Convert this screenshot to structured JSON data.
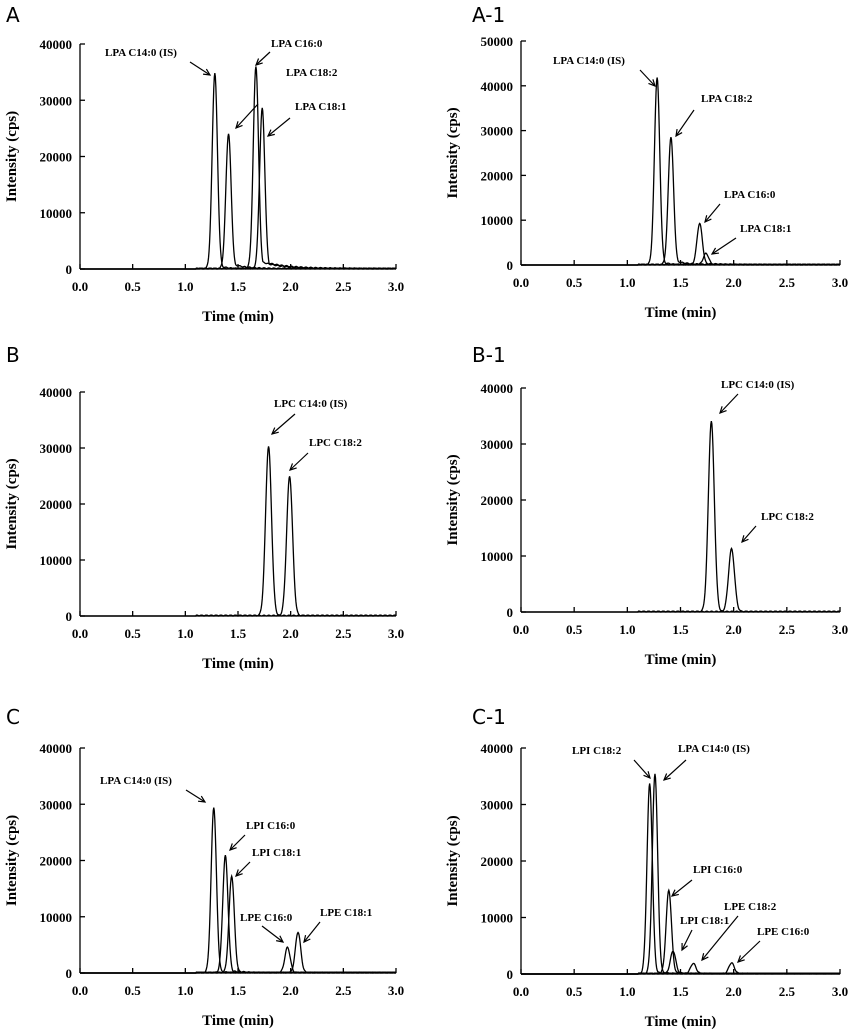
{
  "chart_data": [
    {
      "panel": "A",
      "type": "line",
      "xlabel": "Time (min)",
      "ylabel": "Intensity (cps)",
      "xlim": [
        0,
        3
      ],
      "ylim": [
        0,
        40000
      ],
      "xticks": [
        "0.0",
        "0.5",
        "1.0",
        "1.5",
        "2.0",
        "2.5",
        "3.0"
      ],
      "yticks": [
        "0",
        "10000",
        "20000",
        "30000",
        "40000"
      ],
      "peaks": [
        {
          "label": "LPA C14:0 (IS)",
          "rt": 1.28,
          "height": 34800,
          "sigma": 0.025,
          "tail": 0.05
        },
        {
          "label": "LPA C18:2",
          "rt": 1.41,
          "height": 24000,
          "sigma": 0.025,
          "tail": 0.12
        },
        {
          "label": "LPA C16:0",
          "rt": 1.67,
          "height": 36000,
          "sigma": 0.025,
          "tail": 0.18
        },
        {
          "label": "LPA C18:1",
          "rt": 1.73,
          "height": 28500,
          "sigma": 0.025,
          "tail": 0.22
        }
      ]
    },
    {
      "panel": "A-1",
      "type": "line",
      "xlabel": "Time (min)",
      "ylabel": "Intensity (cps)",
      "xlim": [
        0,
        3
      ],
      "ylim": [
        0,
        50000
      ],
      "xticks": [
        "0.0",
        "0.5",
        "1.0",
        "1.5",
        "2.0",
        "2.5",
        "3.0"
      ],
      "yticks": [
        "0",
        "10000",
        "20000",
        "30000",
        "40000",
        "50000"
      ],
      "peaks": [
        {
          "label": "LPA C14:0 (IS)",
          "rt": 1.28,
          "height": 41800,
          "sigma": 0.025,
          "tail": 0.05
        },
        {
          "label": "LPA C18:2",
          "rt": 1.41,
          "height": 28500,
          "sigma": 0.025,
          "tail": 0.1
        },
        {
          "label": "LPA C16:0",
          "rt": 1.68,
          "height": 9200,
          "sigma": 0.025,
          "tail": 0.12
        },
        {
          "label": "LPA C18:1",
          "rt": 1.74,
          "height": 2500,
          "sigma": 0.025,
          "tail": 0.12
        }
      ]
    },
    {
      "panel": "B",
      "type": "line",
      "xlabel": "Time (min)",
      "ylabel": "Intensity (cps)",
      "xlim": [
        0,
        3
      ],
      "ylim": [
        0,
        40000
      ],
      "xticks": [
        "0.0",
        "0.5",
        "1.0",
        "1.5",
        "2.0",
        "2.5",
        "3.0"
      ],
      "yticks": [
        "0",
        "10000",
        "20000",
        "30000",
        "40000"
      ],
      "peaks": [
        {
          "label": "LPC C14:0 (IS)",
          "rt": 1.79,
          "height": 30200,
          "sigma": 0.028,
          "tail": 0
        },
        {
          "label": "LPC C18:2",
          "rt": 1.99,
          "height": 24900,
          "sigma": 0.028,
          "tail": 0
        }
      ]
    },
    {
      "panel": "B-1",
      "type": "line",
      "xlabel": "Time (min)",
      "ylabel": "Intensity (cps)",
      "xlim": [
        0,
        3
      ],
      "ylim": [
        0,
        40000
      ],
      "xticks": [
        "0.0",
        "0.5",
        "1.0",
        "1.5",
        "2.0",
        "2.5",
        "3.0"
      ],
      "yticks": [
        "0",
        "10000",
        "20000",
        "30000",
        "40000"
      ],
      "peaks": [
        {
          "label": "LPC C14:0 (IS)",
          "rt": 1.79,
          "height": 34000,
          "sigma": 0.028,
          "tail": 0
        },
        {
          "label": "LPC C18:2",
          "rt": 1.98,
          "height": 11200,
          "sigma": 0.028,
          "tail": 0
        }
      ]
    },
    {
      "panel": "C",
      "type": "line",
      "xlabel": "Time (min)",
      "ylabel": "Intensity (cps)",
      "xlim": [
        0,
        3
      ],
      "ylim": [
        0,
        40000
      ],
      "xticks": [
        "0.0",
        "0.5",
        "1.0",
        "1.5",
        "2.0",
        "2.5",
        "3.0"
      ],
      "yticks": [
        "0",
        "10000",
        "20000",
        "30000",
        "40000"
      ],
      "peaks": [
        {
          "label": "LPA C14:0 (IS)",
          "rt": 1.27,
          "height": 29400,
          "sigma": 0.025,
          "tail": 0.04
        },
        {
          "label": "LPI C16:0",
          "rt": 1.38,
          "height": 20800,
          "sigma": 0.025,
          "tail": 0.06
        },
        {
          "label": "LPI C18:1",
          "rt": 1.44,
          "height": 17200,
          "sigma": 0.025,
          "tail": 0.06
        },
        {
          "label": "LPE C16:0",
          "rt": 1.97,
          "height": 4500,
          "sigma": 0.025,
          "tail": 0.03
        },
        {
          "label": "LPE C18:1",
          "rt": 2.07,
          "height": 7200,
          "sigma": 0.025,
          "tail": 0.03
        }
      ]
    },
    {
      "panel": "C-1",
      "type": "line",
      "xlabel": "Time (min)",
      "ylabel": "Intensity (cps)",
      "xlim": [
        0,
        3
      ],
      "ylim": [
        0,
        40000
      ],
      "xticks": [
        "0.0",
        "0.5",
        "1.0",
        "1.5",
        "2.0",
        "2.5",
        "3.0"
      ],
      "yticks": [
        "0",
        "10000",
        "20000",
        "30000",
        "40000"
      ],
      "peaks": [
        {
          "label": "LPI C18:2",
          "rt": 1.21,
          "height": 33600,
          "sigma": 0.025,
          "tail": 0.04
        },
        {
          "label": "LPA C14:0 (IS)",
          "rt": 1.26,
          "height": 35400,
          "sigma": 0.025,
          "tail": 0.04
        },
        {
          "label": "LPI C16:0",
          "rt": 1.39,
          "height": 14800,
          "sigma": 0.025,
          "tail": 0.06
        },
        {
          "label": "LPI C18:1",
          "rt": 1.43,
          "height": 4000,
          "sigma": 0.025,
          "tail": 0.05
        },
        {
          "label": "LPE C18:2",
          "rt": 1.62,
          "height": 1800,
          "sigma": 0.025,
          "tail": 0.04
        },
        {
          "label": "LPE C16:0",
          "rt": 1.98,
          "height": 1900,
          "sigma": 0.025,
          "tail": 0.03
        }
      ]
    }
  ]
}
